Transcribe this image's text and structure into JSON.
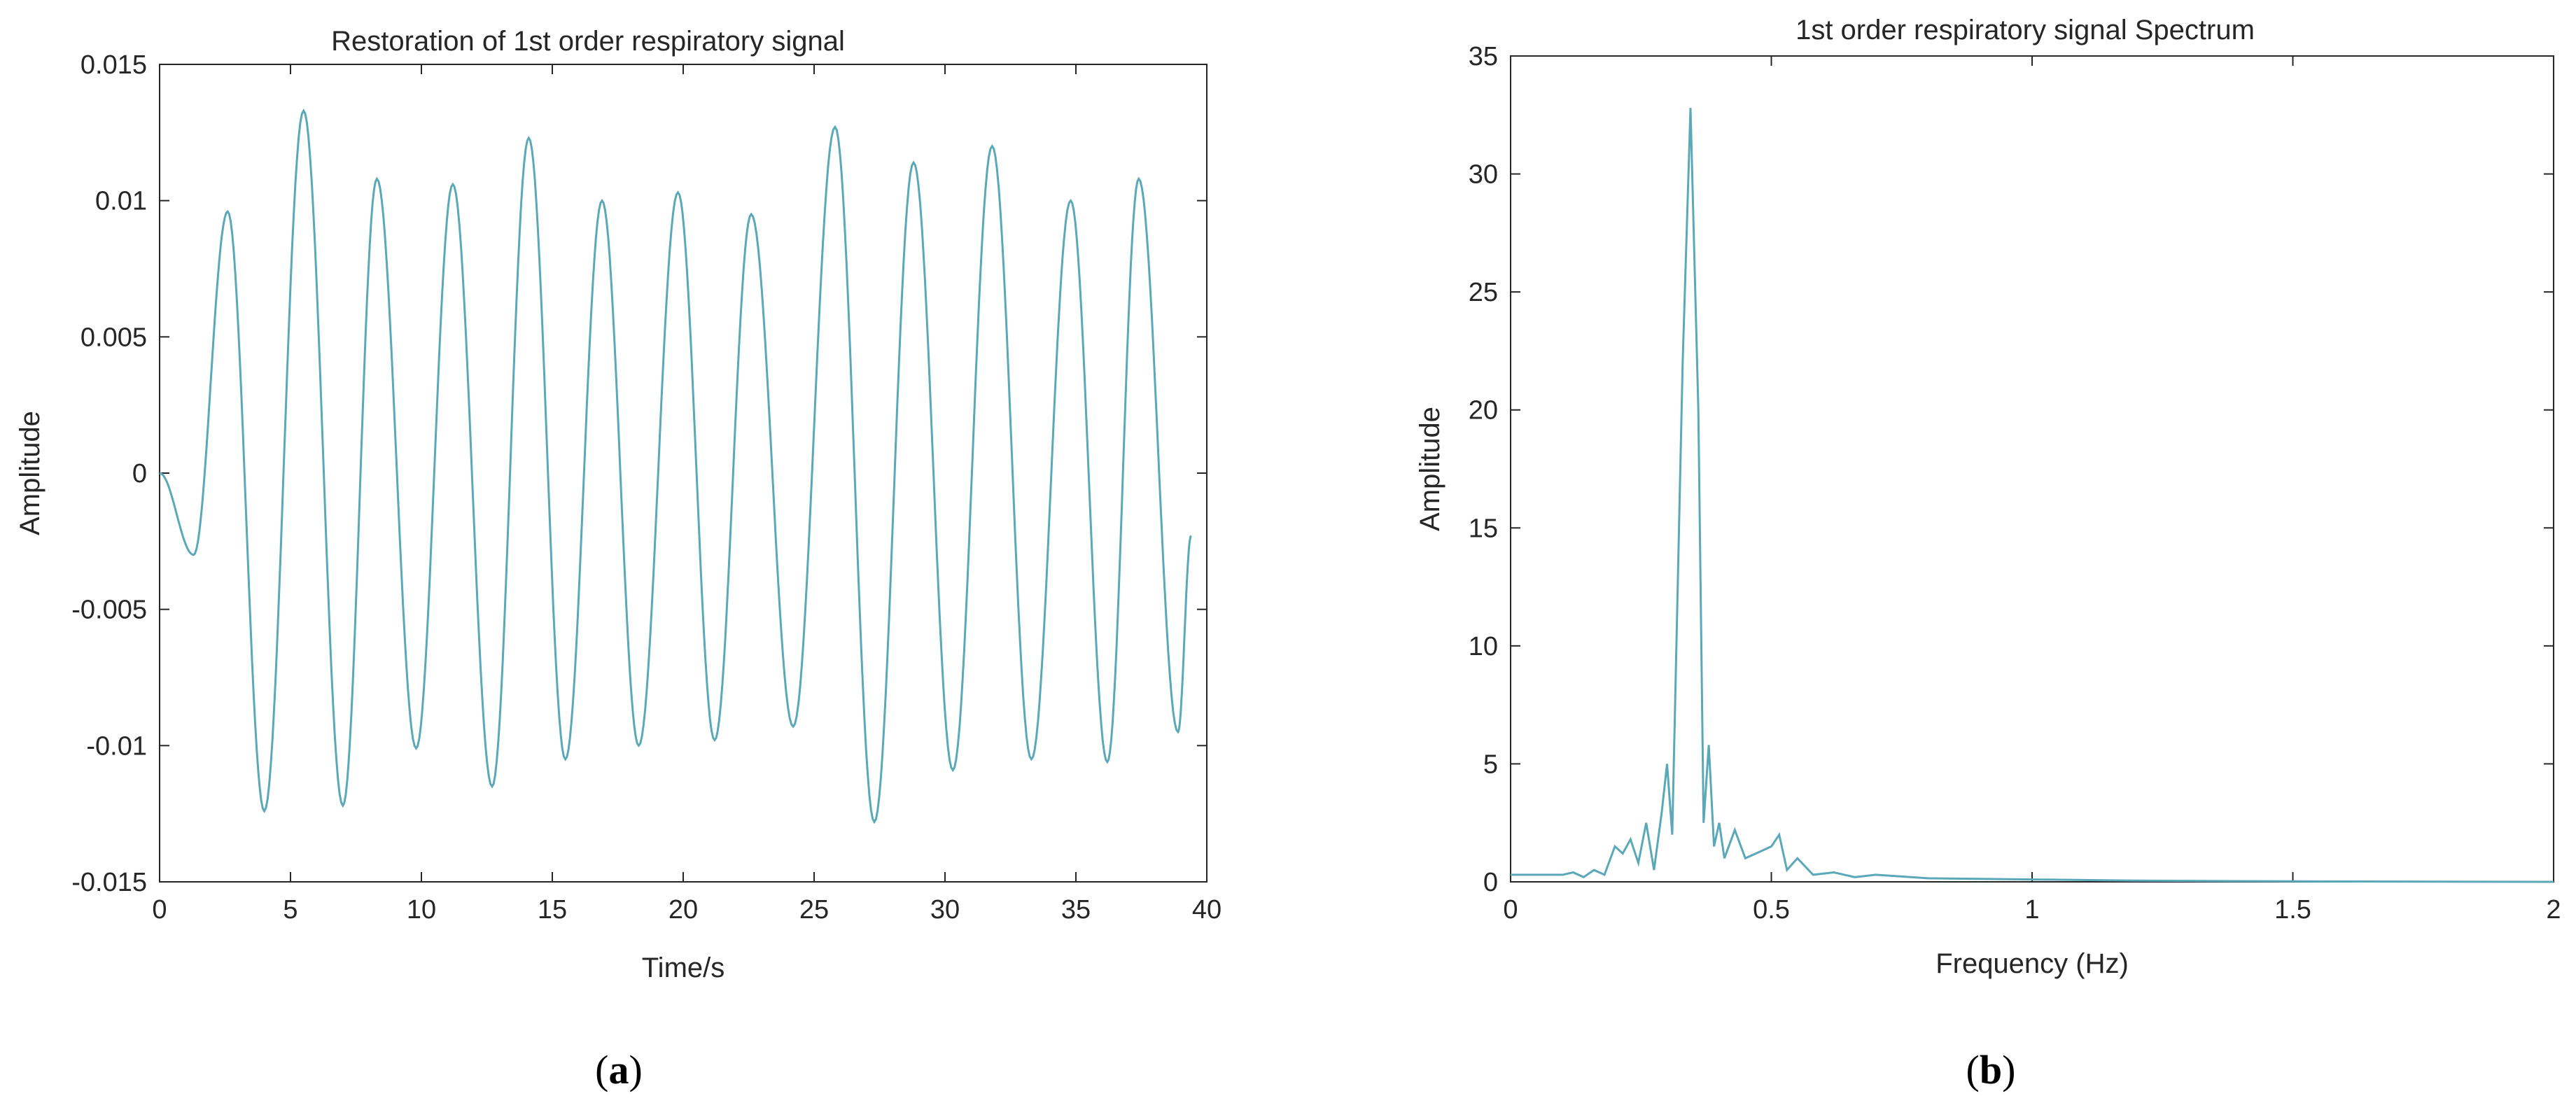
{
  "panels": [
    {
      "label": "a"
    },
    {
      "label": "b"
    }
  ],
  "colors": {
    "series_line": "#5aa8b8",
    "axes": "#262626",
    "background": "#ffffff"
  },
  "chart_data": [
    {
      "type": "line",
      "title": "Restoration of 1st order respiratory signal",
      "xlabel": "Time/s",
      "ylabel": "Amplitude",
      "xlim": [
        0,
        40
      ],
      "ylim": [
        -0.015,
        0.015
      ],
      "xticks": [
        "0",
        "5",
        "10",
        "15",
        "20",
        "25",
        "30",
        "35",
        "40"
      ],
      "yticks": [
        "0.015",
        "0.01",
        "0.005",
        "0",
        "-0.005",
        "-0.01",
        "-0.015"
      ],
      "grid": false,
      "series": [
        {
          "extrema": [
            [
              0,
              0
            ],
            [
              1.3,
              -0.003
            ],
            [
              2.6,
              0.0096
            ],
            [
              4.0,
              -0.0124
            ],
            [
              5.5,
              0.0133
            ],
            [
              7.0,
              -0.0122
            ],
            [
              8.3,
              0.0108
            ],
            [
              9.8,
              -0.0101
            ],
            [
              11.2,
              0.0106
            ],
            [
              12.7,
              -0.0115
            ],
            [
              14.1,
              0.0123
            ],
            [
              15.5,
              -0.0105
            ],
            [
              16.9,
              0.01
            ],
            [
              18.3,
              -0.01
            ],
            [
              19.8,
              0.0103
            ],
            [
              21.2,
              -0.0098
            ],
            [
              22.6,
              0.0095
            ],
            [
              24.2,
              -0.0093
            ],
            [
              25.8,
              0.0127
            ],
            [
              27.3,
              -0.0128
            ],
            [
              28.8,
              0.0114
            ],
            [
              30.3,
              -0.0109
            ],
            [
              31.8,
              0.012
            ],
            [
              33.3,
              -0.0105
            ],
            [
              34.8,
              0.01
            ],
            [
              36.2,
              -0.0106
            ],
            [
              37.4,
              0.0108
            ],
            [
              38.9,
              -0.0095
            ],
            [
              39.4,
              -0.0023
            ]
          ]
        }
      ]
    },
    {
      "type": "line",
      "title": "1st order respiratory signal Spectrum",
      "xlabel": "Frequency (Hz)",
      "ylabel": "Amplitude",
      "xlim": [
        0,
        2
      ],
      "ylim": [
        0,
        35
      ],
      "xticks": [
        "0",
        "0.5",
        "1",
        "1.5",
        "2"
      ],
      "yticks": [
        "35",
        "30",
        "25",
        "20",
        "15",
        "10",
        "5",
        "0"
      ],
      "grid": false,
      "series": [
        {
          "points": [
            [
              0,
              0.3
            ],
            [
              0.05,
              0.3
            ],
            [
              0.1,
              0.3
            ],
            [
              0.12,
              0.4
            ],
            [
              0.14,
              0.2
            ],
            [
              0.16,
              0.5
            ],
            [
              0.18,
              0.3
            ],
            [
              0.2,
              1.5
            ],
            [
              0.215,
              1.2
            ],
            [
              0.23,
              1.8
            ],
            [
              0.245,
              0.8
            ],
            [
              0.26,
              2.5
            ],
            [
              0.275,
              0.5
            ],
            [
              0.29,
              3.0
            ],
            [
              0.3,
              5.0
            ],
            [
              0.31,
              2.0
            ],
            [
              0.33,
              22.0
            ],
            [
              0.345,
              32.8
            ],
            [
              0.36,
              20.0
            ],
            [
              0.37,
              2.5
            ],
            [
              0.38,
              5.8
            ],
            [
              0.39,
              1.5
            ],
            [
              0.4,
              2.5
            ],
            [
              0.41,
              1.0
            ],
            [
              0.43,
              2.2
            ],
            [
              0.45,
              1.0
            ],
            [
              0.48,
              1.3
            ],
            [
              0.5,
              1.5
            ],
            [
              0.515,
              2.0
            ],
            [
              0.53,
              0.5
            ],
            [
              0.55,
              1.0
            ],
            [
              0.58,
              0.3
            ],
            [
              0.62,
              0.4
            ],
            [
              0.66,
              0.2
            ],
            [
              0.7,
              0.3
            ],
            [
              0.8,
              0.15
            ],
            [
              1.0,
              0.1
            ],
            [
              1.2,
              0.05
            ],
            [
              1.5,
              0.02
            ],
            [
              2.0,
              0.0
            ]
          ]
        }
      ]
    }
  ]
}
